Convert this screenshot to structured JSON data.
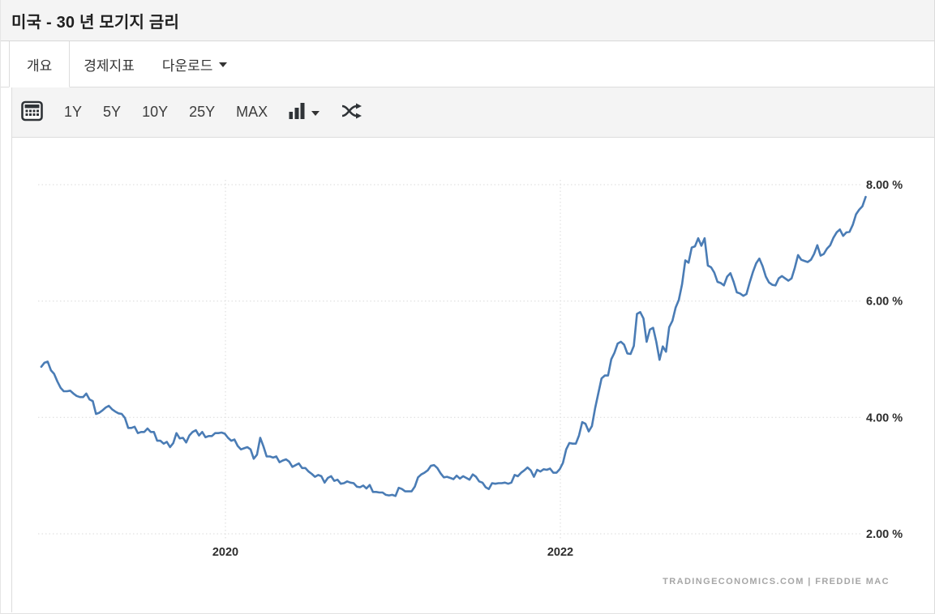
{
  "header": {
    "title": "미국 - 30 년 모기지 금리"
  },
  "tabs": [
    {
      "label": "개요",
      "active": true
    },
    {
      "label": "경제지표",
      "active": false
    },
    {
      "label": "다운로드",
      "active": false,
      "has_caret": true
    }
  ],
  "toolbar": {
    "ranges": [
      "1Y",
      "5Y",
      "10Y",
      "25Y",
      "MAX"
    ],
    "icons": [
      "calendar-icon",
      "bar-chart-icon",
      "chevron-down-icon",
      "shuffle-compare-icon"
    ]
  },
  "chart_data": {
    "type": "line",
    "title": "미국 - 30 년 모기지 금리",
    "unit": "%",
    "line_color": "#4a7cb5",
    "grid_color": "#d9d9d9",
    "legend": "none",
    "grid": "dotted",
    "y_axis": {
      "side": "right",
      "range": [
        1.9,
        8.1
      ],
      "ticks": [
        {
          "value": 8,
          "label": "8.00 %"
        },
        {
          "value": 6,
          "label": "6.00 %"
        },
        {
          "value": 4,
          "label": "4.00 %"
        },
        {
          "value": 2,
          "label": "2.00 %"
        }
      ]
    },
    "x_axis": {
      "range": [
        2018.88,
        2023.83
      ],
      "ticks": [
        {
          "value": 2020,
          "label": "2020"
        },
        {
          "value": 2022,
          "label": "2022"
        }
      ]
    },
    "series": [
      {
        "name": "30-year mortgage rate",
        "start_year": 2018.9,
        "step_years": 0.019231,
        "values": [
          4.87,
          4.94,
          4.96,
          4.81,
          4.75,
          4.62,
          4.51,
          4.45,
          4.45,
          4.46,
          4.41,
          4.37,
          4.35,
          4.35,
          4.41,
          4.31,
          4.28,
          4.06,
          4.08,
          4.12,
          4.17,
          4.2,
          4.14,
          4.1,
          4.07,
          4.06,
          3.99,
          3.82,
          3.82,
          3.84,
          3.73,
          3.75,
          3.75,
          3.81,
          3.75,
          3.75,
          3.6,
          3.6,
          3.55,
          3.58,
          3.49,
          3.56,
          3.73,
          3.64,
          3.65,
          3.57,
          3.69,
          3.75,
          3.78,
          3.69,
          3.75,
          3.66,
          3.68,
          3.68,
          3.73,
          3.73,
          3.74,
          3.72,
          3.65,
          3.6,
          3.62,
          3.51,
          3.45,
          3.47,
          3.49,
          3.45,
          3.29,
          3.36,
          3.65,
          3.5,
          3.33,
          3.33,
          3.31,
          3.33,
          3.23,
          3.26,
          3.28,
          3.24,
          3.15,
          3.18,
          3.21,
          3.13,
          3.13,
          3.07,
          3.03,
          2.98,
          3.01,
          2.99,
          2.88,
          2.96,
          2.99,
          2.91,
          2.93,
          2.86,
          2.87,
          2.9,
          2.88,
          2.87,
          2.81,
          2.8,
          2.83,
          2.78,
          2.84,
          2.72,
          2.72,
          2.71,
          2.71,
          2.67,
          2.66,
          2.67,
          2.65,
          2.79,
          2.77,
          2.73,
          2.73,
          2.73,
          2.81,
          2.97,
          3.02,
          3.05,
          3.09,
          3.17,
          3.18,
          3.13,
          3.04,
          2.97,
          2.98,
          2.96,
          2.94,
          3.0,
          2.95,
          2.99,
          2.96,
          2.93,
          3.02,
          2.98,
          2.9,
          2.88,
          2.8,
          2.77,
          2.87,
          2.86,
          2.87,
          2.87,
          2.88,
          2.86,
          2.88,
          3.01,
          2.99,
          3.05,
          3.09,
          3.14,
          3.09,
          2.98,
          3.1,
          3.07,
          3.11,
          3.1,
          3.12,
          3.05,
          3.05,
          3.11,
          3.22,
          3.45,
          3.56,
          3.55,
          3.55,
          3.69,
          3.92,
          3.89,
          3.76,
          3.85,
          4.16,
          4.42,
          4.67,
          4.72,
          4.72,
          5.0,
          5.11,
          5.27,
          5.3,
          5.25,
          5.1,
          5.09,
          5.23,
          5.78,
          5.81,
          5.7,
          5.3,
          5.51,
          5.54,
          5.3,
          4.99,
          5.22,
          5.13,
          5.55,
          5.66,
          5.89,
          6.02,
          6.29,
          6.7,
          6.66,
          6.92,
          6.94,
          7.08,
          6.95,
          7.08,
          6.61,
          6.58,
          6.49,
          6.33,
          6.31,
          6.27,
          6.42,
          6.48,
          6.33,
          6.15,
          6.13,
          6.09,
          6.12,
          6.32,
          6.5,
          6.65,
          6.73,
          6.6,
          6.42,
          6.32,
          6.28,
          6.27,
          6.39,
          6.43,
          6.39,
          6.35,
          6.39,
          6.57,
          6.79,
          6.71,
          6.69,
          6.67,
          6.71,
          6.81,
          6.96,
          6.78,
          6.81,
          6.9,
          6.96,
          7.09,
          7.18,
          7.23,
          7.12,
          7.18,
          7.19,
          7.31,
          7.49,
          7.57,
          7.63,
          7.79
        ]
      }
    ],
    "source_note": "TRADINGECONOMICS.COM | FREDDIE MAC"
  }
}
